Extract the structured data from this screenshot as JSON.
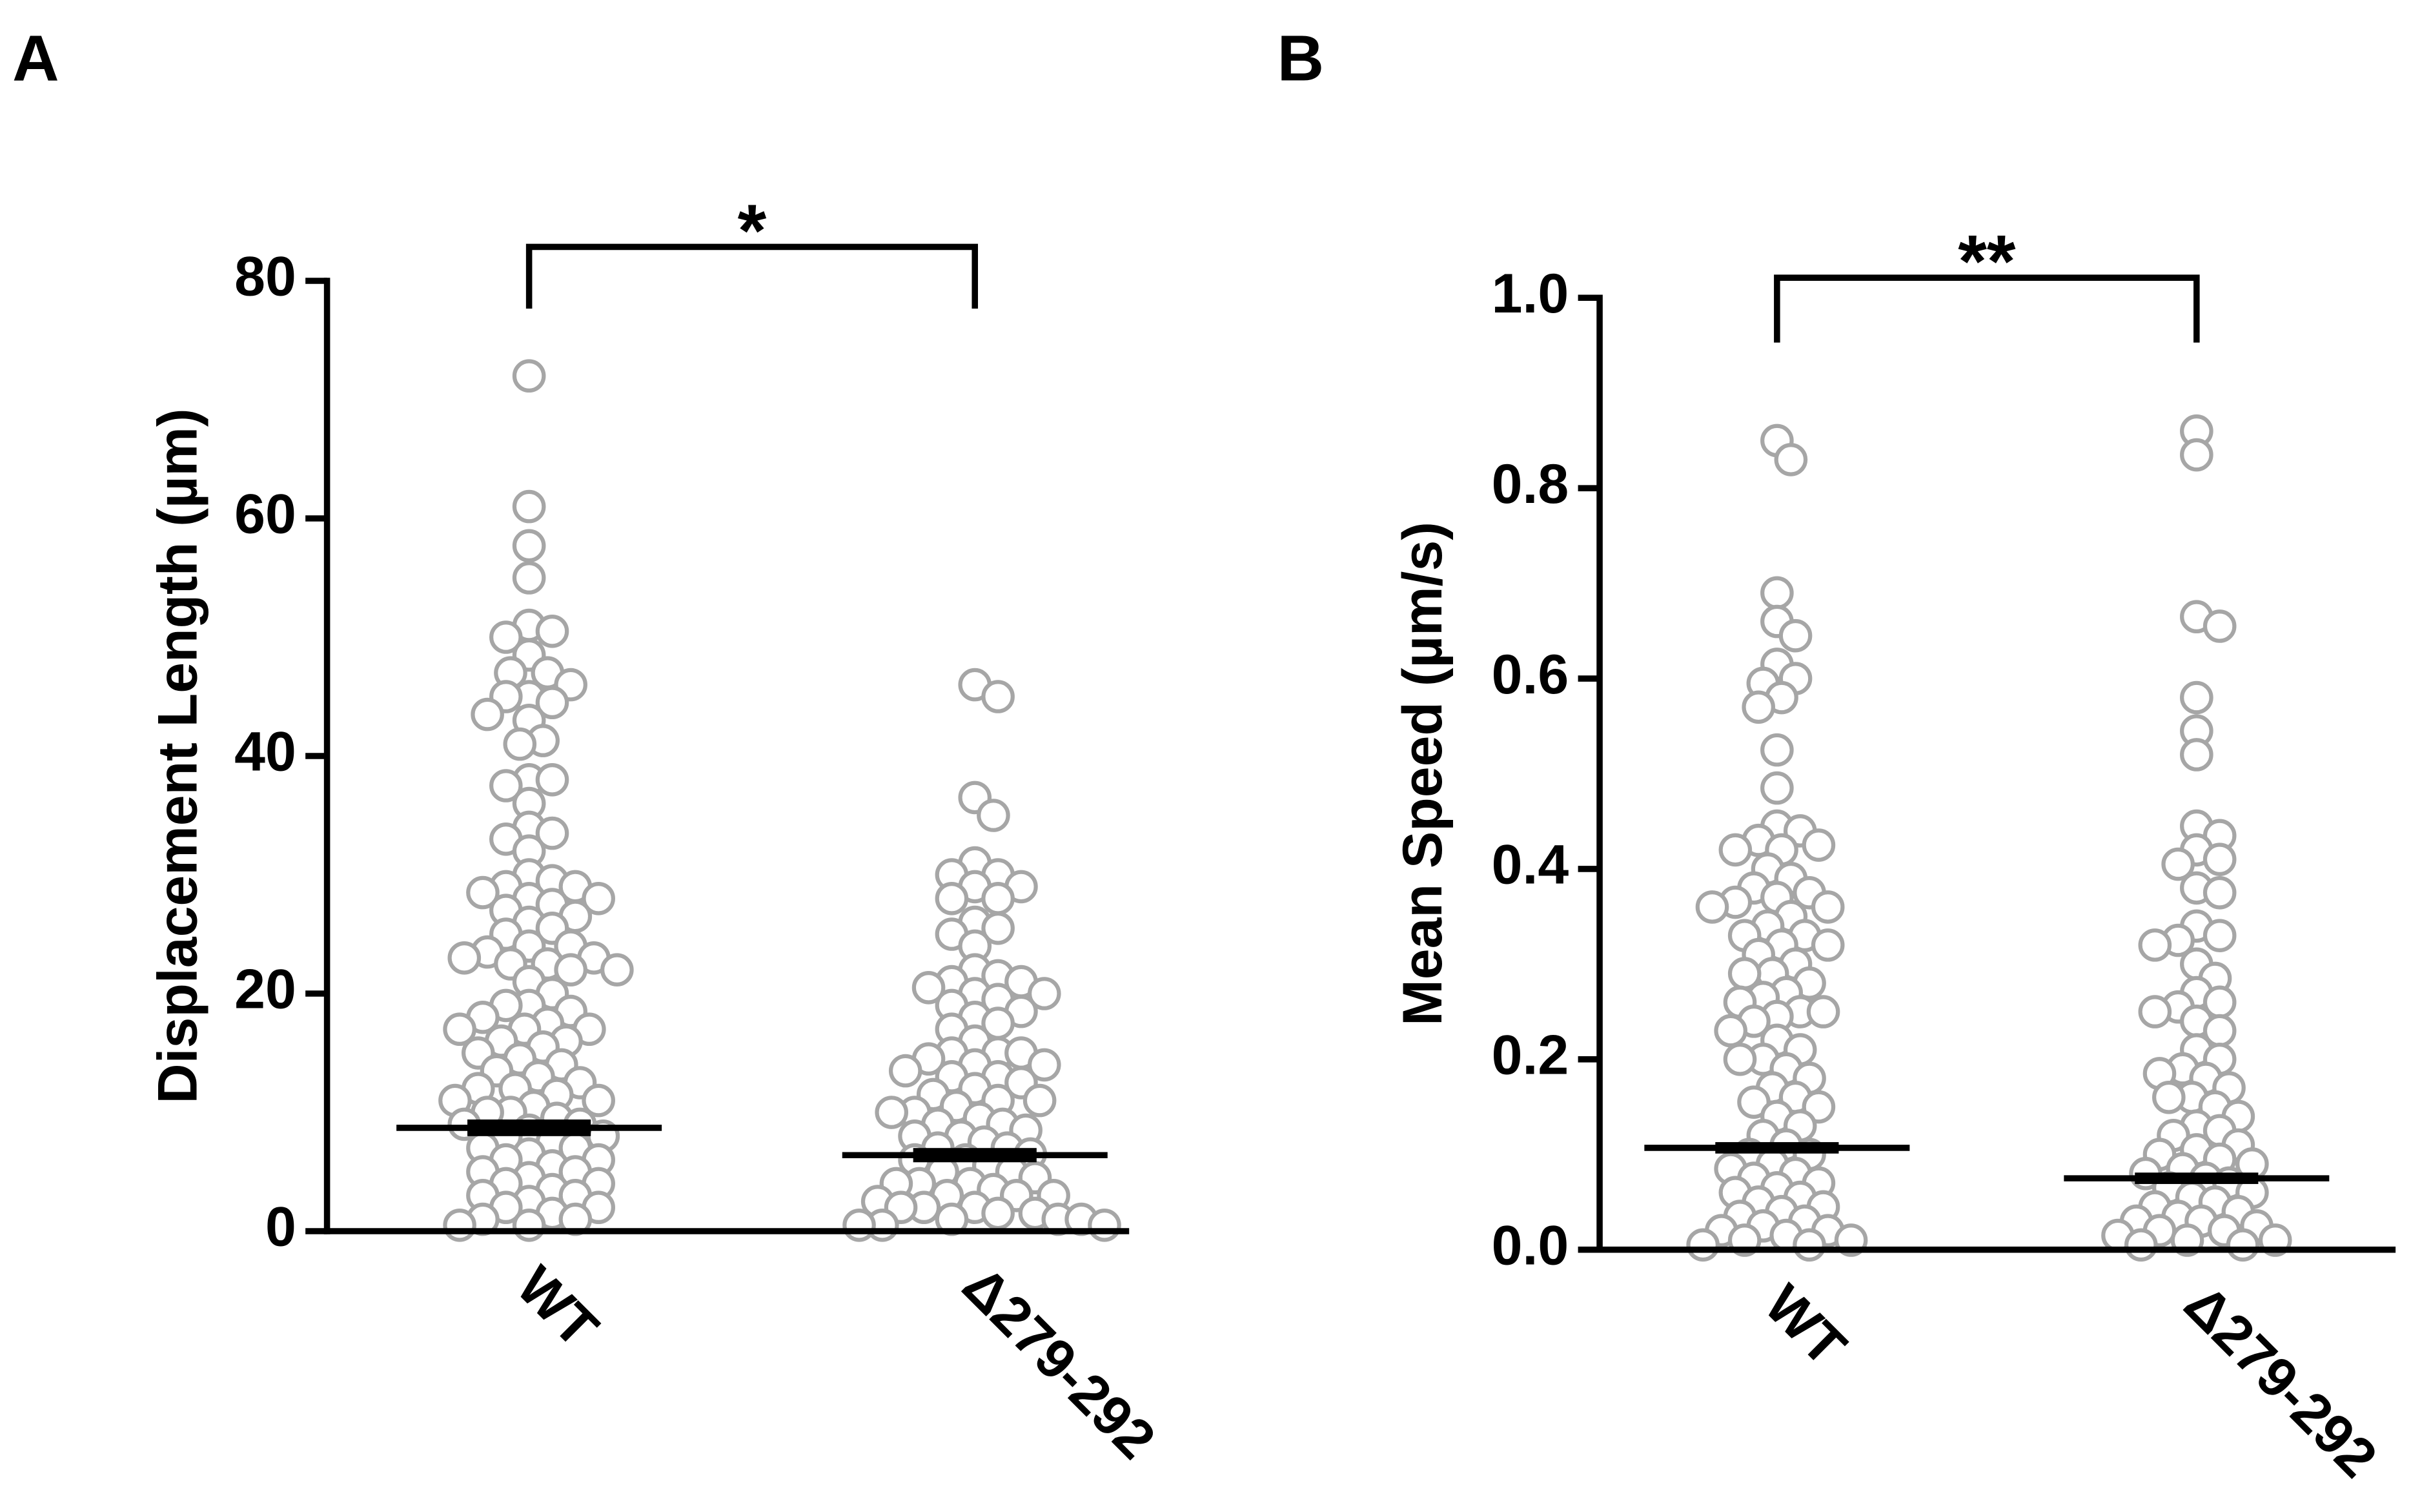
{
  "chart_data": [
    {
      "type": "strip",
      "panel": "A",
      "ylabel": "Displacement Length (µm)",
      "significance": "*",
      "categories": [
        "WT",
        "Δ279-292"
      ],
      "point_color": "#a6a6a6",
      "mean_color": "#000000",
      "ylim": [
        0,
        80
      ],
      "yticks": [
        0,
        20,
        40,
        60,
        80
      ],
      "groups": [
        {
          "values": [
            72,
            61,
            57.7,
            55,
            51,
            50.5,
            50,
            48.5,
            47,
            47,
            46,
            45,
            45,
            44.5,
            43.5,
            43,
            41.3,
            41,
            38,
            38,
            37.5,
            36,
            34,
            33.5,
            33,
            32,
            30,
            29.5,
            29,
            29,
            28.5,
            28,
            28,
            27.5,
            27,
            26.5,
            26,
            25.5,
            25,
            24,
            24,
            23.5,
            23,
            23,
            22.5,
            22.5,
            22,
            22,
            21,
            20,
            19,
            19,
            18.5,
            18,
            17.5,
            17,
            17,
            17,
            16,
            16,
            15.5,
            15,
            14.5,
            14,
            13.5,
            13,
            12.5,
            12,
            12,
            11.5,
            11,
            11,
            10.5,
            10,
            10,
            9.5,
            9,
            9,
            8.5,
            8,
            8,
            7.5,
            7,
            7,
            6.5,
            6,
            6,
            5.5,
            5,
            5,
            4.5,
            4,
            4,
            3.5,
            3,
            3,
            2.5,
            2,
            2,
            1.5,
            1,
            1,
            0.5,
            0.5
          ],
          "mean": 8.7,
          "sem": 0.7
        },
        {
          "values": [
            46,
            45,
            36.5,
            35,
            31,
            30,
            30,
            29,
            29,
            28,
            28,
            26,
            25.5,
            25,
            24,
            22,
            21.5,
            21,
            21,
            20.5,
            20,
            20,
            19.5,
            19,
            18.5,
            18,
            17.5,
            17,
            16,
            15,
            15,
            15,
            14.5,
            14,
            14,
            13.5,
            13,
            13,
            12.5,
            12,
            11.5,
            11,
            11,
            10.5,
            10,
            10,
            9.5,
            9,
            9,
            8.5,
            8,
            8,
            7.5,
            7,
            7,
            6.5,
            6,
            6,
            5.5,
            5,
            5,
            4.5,
            4,
            4,
            4,
            3.5,
            3,
            3,
            3,
            2.5,
            2,
            2,
            2,
            1.5,
            1.5,
            1,
            1,
            1,
            0.5,
            0.5,
            0.5
          ],
          "mean": 6.4,
          "sem": 0.6
        }
      ]
    },
    {
      "type": "strip",
      "panel": "B",
      "ylabel": "Mean Speed (µm/s)",
      "significance": "**",
      "categories": [
        "WT",
        "Δ279-292"
      ],
      "point_color": "#a6a6a6",
      "mean_color": "#000000",
      "ylim": [
        0,
        1
      ],
      "yticks": [
        {
          "value": 0,
          "label": "0.0"
        },
        {
          "value": 0.2,
          "label": "0.2"
        },
        {
          "value": 0.4,
          "label": "0.4"
        },
        {
          "value": 0.6,
          "label": "0.6"
        },
        {
          "value": 0.8,
          "label": "0.8"
        },
        {
          "value": 1,
          "label": "1.0"
        }
      ],
      "groups": [
        {
          "values": [
            0.85,
            0.83,
            0.69,
            0.66,
            0.645,
            0.615,
            0.6,
            0.595,
            0.58,
            0.57,
            0.525,
            0.485,
            0.445,
            0.44,
            0.43,
            0.425,
            0.42,
            0.42,
            0.4,
            0.39,
            0.38,
            0.375,
            0.37,
            0.365,
            0.36,
            0.36,
            0.35,
            0.34,
            0.33,
            0.33,
            0.32,
            0.32,
            0.31,
            0.3,
            0.29,
            0.29,
            0.28,
            0.27,
            0.265,
            0.26,
            0.25,
            0.25,
            0.245,
            0.24,
            0.23,
            0.22,
            0.21,
            0.2,
            0.2,
            0.19,
            0.18,
            0.17,
            0.16,
            0.155,
            0.15,
            0.14,
            0.13,
            0.12,
            0.11,
            0.1,
            0.1,
            0.09,
            0.085,
            0.08,
            0.075,
            0.07,
            0.065,
            0.06,
            0.055,
            0.05,
            0.045,
            0.04,
            0.035,
            0.03,
            0.025,
            0.02,
            0.02,
            0.015,
            0.01,
            0.01,
            0.005,
            0.005
          ],
          "mean": 0.107,
          "sem": 0.006
        },
        {
          "values": [
            0.86,
            0.835,
            0.665,
            0.655,
            0.58,
            0.545,
            0.52,
            0.445,
            0.435,
            0.42,
            0.41,
            0.405,
            0.38,
            0.375,
            0.34,
            0.33,
            0.325,
            0.32,
            0.3,
            0.285,
            0.27,
            0.26,
            0.255,
            0.25,
            0.24,
            0.23,
            0.21,
            0.2,
            0.19,
            0.185,
            0.18,
            0.17,
            0.16,
            0.16,
            0.15,
            0.14,
            0.13,
            0.125,
            0.12,
            0.11,
            0.105,
            0.1,
            0.095,
            0.09,
            0.085,
            0.08,
            0.075,
            0.07,
            0.065,
            0.06,
            0.055,
            0.05,
            0.045,
            0.04,
            0.035,
            0.03,
            0.03,
            0.025,
            0.02,
            0.02,
            0.015,
            0.01,
            0.01,
            0.005,
            0.005
          ],
          "mean": 0.075,
          "sem": 0.006
        }
      ]
    }
  ]
}
